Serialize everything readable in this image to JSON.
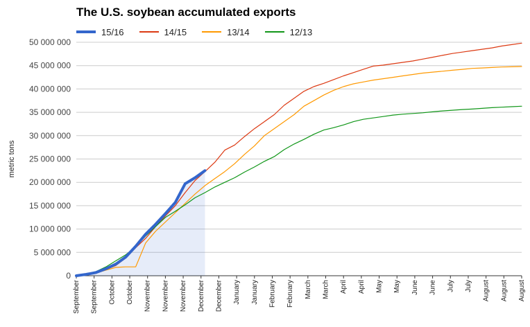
{
  "chart_data": {
    "type": "line",
    "title": "The U.S. soybean accumulated exports",
    "ylabel": "metric tons",
    "xlabel": "",
    "ylim": [
      0,
      50000000
    ],
    "yticks": [
      "0",
      "5 000 000",
      "10 000 000",
      "15 000 000",
      "20 000 000",
      "25 000 000",
      "30 000 000",
      "35 000 000",
      "40 000 000",
      "45 000 000",
      "50 000 000"
    ],
    "x_tick_labels": [
      "September",
      "September",
      "October",
      "October",
      "November",
      "November",
      "November",
      "December",
      "December",
      "January",
      "January",
      "February",
      "February",
      "March",
      "March",
      "April",
      "April",
      "May",
      "May",
      "June",
      "June",
      "July",
      "July",
      "August",
      "August",
      "August"
    ],
    "grid": true,
    "legend_position": "top",
    "series": [
      {
        "name": "15/16",
        "color": "#3366cc",
        "highlight": true,
        "values": [
          0,
          300000,
          700000,
          1500000,
          2500000,
          4000000,
          6300000,
          8900000,
          11000000,
          13300000,
          15700000,
          19700000,
          21000000,
          22500000
        ]
      },
      {
        "name": "14/15",
        "color": "#dc3912",
        "values": [
          0,
          200000,
          500000,
          1300000,
          2200000,
          3800000,
          6000000,
          8000000,
          10500000,
          12800000,
          15000000,
          17800000,
          20400000,
          22300000,
          24300000,
          26900000,
          28000000,
          29800000,
          31500000,
          33000000,
          34500000,
          36500000,
          38000000,
          39500000,
          40500000,
          41200000,
          42000000,
          42800000,
          43500000,
          44200000,
          44900000,
          45100000,
          45400000,
          45700000,
          46000000,
          46400000,
          46800000,
          47200000,
          47600000,
          47900000,
          48200000,
          48500000,
          48800000,
          49200000,
          49500000,
          49800000
        ]
      },
      {
        "name": "13/14",
        "color": "#ff9900",
        "values": [
          0,
          200000,
          600000,
          1200000,
          1800000,
          1900000,
          1900000,
          7000000,
          9500000,
          11500000,
          13500000,
          15500000,
          17500000,
          19300000,
          20800000,
          22300000,
          24000000,
          26000000,
          27800000,
          30000000,
          31500000,
          33000000,
          34500000,
          36300000,
          37500000,
          38700000,
          39700000,
          40500000,
          41100000,
          41500000,
          41900000,
          42200000,
          42500000,
          42800000,
          43100000,
          43400000,
          43600000,
          43800000,
          44000000,
          44200000,
          44400000,
          44500000,
          44600000,
          44700000,
          44750000,
          44800000
        ]
      },
      {
        "name": "12/13",
        "color": "#109618",
        "values": [
          0,
          400000,
          900000,
          1900000,
          3200000,
          4500000,
          6200000,
          8500000,
          10500000,
          12500000,
          13800000,
          15200000,
          16700000,
          17800000,
          19000000,
          20000000,
          21000000,
          22200000,
          23300000,
          24500000,
          25500000,
          27000000,
          28200000,
          29200000,
          30300000,
          31200000,
          31700000,
          32300000,
          33000000,
          33500000,
          33800000,
          34100000,
          34400000,
          34600000,
          34750000,
          34900000,
          35100000,
          35300000,
          35450000,
          35600000,
          35700000,
          35850000,
          36000000,
          36100000,
          36200000,
          36300000
        ]
      }
    ],
    "highlight_series": "15/16"
  }
}
